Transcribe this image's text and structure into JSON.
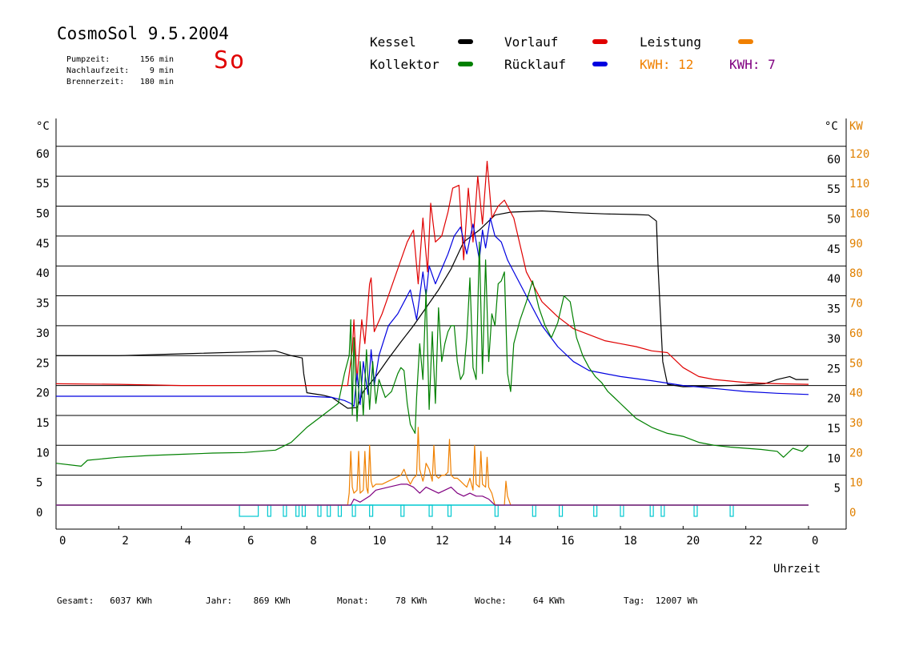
{
  "header": {
    "title": "CosmoSol 9.5.2004",
    "pump": {
      "label": "Pumpzeit:",
      "value": "156 min"
    },
    "run_on": {
      "label": "Nachlaufzeit:",
      "value": "9 min"
    },
    "burner": {
      "label": "Brennerzeit:",
      "value": "180 min"
    },
    "day": "So"
  },
  "legend": {
    "kessel": {
      "label": "Kessel",
      "color": "#000000"
    },
    "kollektor": {
      "label": "Kollektor",
      "color": "#008000"
    },
    "vorlauf": {
      "label": "Vorlauf",
      "color": "#e00000"
    },
    "ruecklauf": {
      "label": "Rücklauf",
      "color": "#0000e0"
    },
    "leistung": {
      "label": "Leistung",
      "color": "#f08000"
    },
    "kwh_orange": {
      "text": "KWH: 12",
      "color": "#f08000"
    },
    "kwh_purple": {
      "text": "KWH: 7",
      "color": "#800080"
    }
  },
  "footer": {
    "gesamt": {
      "label": "Gesamt:",
      "value": "6037 KWh"
    },
    "jahr": {
      "label": "Jahr:",
      "value": "869 KWh"
    },
    "monat": {
      "label": "Monat:",
      "value": "78 KWh"
    },
    "woche": {
      "label": "Woche:",
      "value": "64 KWh"
    },
    "tag": {
      "label": "Tag:",
      "value": "12007 Wh"
    }
  },
  "chart_data": {
    "type": "line",
    "ylabel_left": "°C",
    "ylabel_right": "°C",
    "ylabel_power": "KW",
    "xlabel": "Uhrzeit",
    "xlim": [
      0,
      24
    ],
    "ylim": [
      -3,
      63
    ],
    "power_lim": [
      0,
      120
    ],
    "x_ticks": [
      "0",
      "2",
      "4",
      "6",
      "8",
      "10",
      "12",
      "14",
      "16",
      "18",
      "20",
      "22",
      "0"
    ],
    "y_ticks": [
      0,
      5,
      10,
      15,
      20,
      25,
      30,
      35,
      40,
      45,
      50,
      55,
      60
    ],
    "y_ticks_right": [
      5,
      10,
      15,
      20,
      25,
      30,
      35,
      40,
      45,
      50,
      55,
      60
    ],
    "power_ticks": [
      0,
      10,
      20,
      30,
      40,
      50,
      60,
      70,
      80,
      90,
      100,
      110,
      120
    ],
    "grid": "horizontal",
    "series": [
      {
        "name": "Kessel",
        "color": "#000000",
        "x": [
          0,
          2,
          4,
          6,
          7.0,
          7.5,
          7.85,
          7.9,
          8.0,
          8.5,
          8.8,
          9.3,
          9.6,
          9.8,
          10.2,
          10.6,
          11.0,
          11.4,
          11.8,
          12.2,
          12.6,
          13.0,
          13.5,
          14.0,
          14.5,
          15.5,
          16.5,
          17.5,
          18.5,
          18.9,
          19.15,
          19.2,
          19.35,
          19.5,
          20.0,
          21.0,
          22.0,
          22.6,
          23.0,
          23.4,
          23.6,
          24
        ],
        "y": [
          25.0,
          25.0,
          25.3,
          25.6,
          25.8,
          25.0,
          24.6,
          22.0,
          18.8,
          18.4,
          18.0,
          16.2,
          16.3,
          19.0,
          21.5,
          24.5,
          27.3,
          30.0,
          33.0,
          36.0,
          39.5,
          44.0,
          46.0,
          48.5,
          49.0,
          49.2,
          48.9,
          48.7,
          48.6,
          48.5,
          47.5,
          40.0,
          24.0,
          20.2,
          19.8,
          19.9,
          20.1,
          20.3,
          21.0,
          21.5,
          21.0,
          21.0
        ]
      },
      {
        "name": "Vorlauf",
        "color": "#e00000",
        "x": [
          0,
          2,
          4,
          6,
          8,
          9.0,
          9.3,
          9.45,
          9.5,
          9.6,
          9.75,
          9.85,
          10.0,
          10.05,
          10.15,
          10.4,
          10.8,
          11.2,
          11.4,
          11.55,
          11.7,
          11.85,
          11.95,
          12.1,
          12.3,
          12.5,
          12.65,
          12.85,
          13.0,
          13.15,
          13.3,
          13.45,
          13.6,
          13.75,
          13.9,
          14.1,
          14.3,
          14.6,
          15.0,
          15.5,
          16.0,
          16.5,
          17.0,
          17.5,
          18.0,
          18.5,
          19.0,
          19.5,
          20.0,
          20.5,
          21.0,
          22.0,
          23.0,
          24
        ],
        "y": [
          20.3,
          20.2,
          20.0,
          20.0,
          20.0,
          20.0,
          20.0,
          26.0,
          31.0,
          21.0,
          31.0,
          27.0,
          37.0,
          38.0,
          29.0,
          32.0,
          38.0,
          44.0,
          46.0,
          37.0,
          48.0,
          39.0,
          50.5,
          44.0,
          45.0,
          49.0,
          53.0,
          53.5,
          41.0,
          53.0,
          44.0,
          55.0,
          47.0,
          57.5,
          48.0,
          50.0,
          51.0,
          48.0,
          39.0,
          34.0,
          31.5,
          29.5,
          28.5,
          27.5,
          27.0,
          26.5,
          25.8,
          25.5,
          23.0,
          21.5,
          21.0,
          20.5,
          20.3,
          20.2
        ]
      },
      {
        "name": "Rücklauf",
        "color": "#0000e0",
        "x": [
          0,
          2,
          4,
          6,
          8,
          8.8,
          9.2,
          9.4,
          9.5,
          9.6,
          9.7,
          9.8,
          9.95,
          10.05,
          10.15,
          10.3,
          10.6,
          10.9,
          11.3,
          11.5,
          11.7,
          11.8,
          11.9,
          12.1,
          12.3,
          12.5,
          12.7,
          12.9,
          13.1,
          13.3,
          13.5,
          13.6,
          13.7,
          13.85,
          14.0,
          14.2,
          14.4,
          14.7,
          15.0,
          15.5,
          16.0,
          16.5,
          17.0,
          18.0,
          19.0,
          20.0,
          21.0,
          22.0,
          23.0,
          24
        ],
        "y": [
          18.2,
          18.2,
          18.2,
          18.2,
          18.2,
          18.0,
          17.5,
          17.0,
          16.5,
          22.0,
          16.8,
          24.0,
          18.5,
          26.0,
          20.0,
          25.0,
          30.0,
          32.0,
          36.0,
          31.0,
          39.0,
          35.0,
          40.0,
          37.0,
          39.5,
          42.0,
          45.0,
          46.5,
          42.0,
          47.0,
          41.0,
          46.0,
          43.0,
          48.0,
          45.0,
          44.0,
          41.0,
          38.0,
          35.0,
          30.0,
          26.5,
          24.0,
          22.5,
          21.5,
          20.8,
          20.0,
          19.5,
          19.0,
          18.7,
          18.5
        ]
      },
      {
        "name": "Kollektor",
        "color": "#008000",
        "x": [
          0,
          0.8,
          1,
          2,
          3,
          4,
          5,
          6,
          6.5,
          7.0,
          7.5,
          8.0,
          8.5,
          9.0,
          9.2,
          9.35,
          9.4,
          9.45,
          9.5,
          9.6,
          9.7,
          9.8,
          9.9,
          10.0,
          10.1,
          10.2,
          10.3,
          10.5,
          10.7,
          10.9,
          11.0,
          11.1,
          11.2,
          11.3,
          11.45,
          11.5,
          11.6,
          11.7,
          11.8,
          11.9,
          12.0,
          12.1,
          12.2,
          12.3,
          12.4,
          12.5,
          12.6,
          12.7,
          12.8,
          12.9,
          13.0,
          13.1,
          13.2,
          13.3,
          13.4,
          13.5,
          13.6,
          13.7,
          13.8,
          13.9,
          14.0,
          14.1,
          14.2,
          14.3,
          14.4,
          14.5,
          14.6,
          14.8,
          15.0,
          15.2,
          15.4,
          15.6,
          15.8,
          16.0,
          16.2,
          16.4,
          16.6,
          16.8,
          17.0,
          17.2,
          17.4,
          17.6,
          17.8,
          18.0,
          18.5,
          19.0,
          19.5,
          20.0,
          20.5,
          21.0,
          21.5,
          22.0,
          22.5,
          23.0,
          23.2,
          23.5,
          23.8,
          24
        ],
        "y": [
          7.0,
          6.5,
          7.5,
          8.0,
          8.3,
          8.5,
          8.7,
          8.8,
          9.0,
          9.2,
          10.5,
          13.0,
          15.0,
          17.0,
          22.0,
          25.0,
          31.0,
          15.0,
          28.0,
          14.0,
          24.0,
          15.0,
          26.0,
          16.0,
          24.0,
          17.0,
          21.0,
          18.0,
          19.0,
          22.0,
          23.0,
          22.5,
          17.0,
          13.5,
          12.0,
          18.0,
          27.0,
          21.0,
          36.0,
          16.0,
          29.0,
          17.0,
          33.0,
          24.0,
          27.0,
          29.0,
          30.0,
          30.0,
          24.0,
          21.0,
          22.0,
          28.0,
          38.0,
          23.0,
          21.0,
          44.0,
          22.0,
          41.0,
          24.0,
          32.0,
          30.0,
          37.0,
          37.5,
          39.0,
          22.0,
          19.0,
          27.0,
          31.0,
          34.0,
          37.5,
          33.0,
          30.0,
          28.0,
          30.5,
          35.0,
          34.0,
          28.0,
          25.0,
          23.0,
          21.5,
          20.5,
          19.0,
          18.0,
          17.0,
          14.5,
          13.0,
          12.0,
          11.5,
          10.5,
          10.0,
          9.7,
          9.5,
          9.3,
          9.0,
          8.0,
          9.5,
          9.0,
          10.0
        ]
      },
      {
        "name": "Leistung",
        "color": "#f08000",
        "axis": "power",
        "x": [
          0,
          9.3,
          9.35,
          9.4,
          9.45,
          9.5,
          9.6,
          9.65,
          9.7,
          9.8,
          9.85,
          9.9,
          9.95,
          10.0,
          10.05,
          10.1,
          10.2,
          10.4,
          10.6,
          10.8,
          11.0,
          11.1,
          11.2,
          11.3,
          11.4,
          11.5,
          11.55,
          11.6,
          11.7,
          11.75,
          11.8,
          11.9,
          12.0,
          12.05,
          12.1,
          12.2,
          12.3,
          12.4,
          12.5,
          12.55,
          12.6,
          12.7,
          12.8,
          12.9,
          13.0,
          13.1,
          13.2,
          13.3,
          13.35,
          13.4,
          13.5,
          13.55,
          13.6,
          13.7,
          13.75,
          13.8,
          13.9,
          14.0,
          14.3,
          14.35,
          14.4,
          14.5,
          24
        ],
        "y": [
          0,
          0,
          4,
          18,
          6,
          4,
          5,
          18,
          4,
          5,
          18,
          6,
          4,
          20,
          8,
          6,
          7,
          7,
          8,
          9,
          10,
          12,
          9,
          7,
          9,
          10,
          26,
          12,
          8,
          10,
          14,
          12,
          8,
          20,
          10,
          9,
          10,
          10,
          11,
          22,
          10,
          9,
          9,
          8,
          7,
          6,
          9,
          5,
          20,
          7,
          6,
          18,
          7,
          6,
          16,
          6,
          4,
          0,
          0,
          8,
          3,
          0,
          0
        ]
      },
      {
        "name": "Leistung2",
        "color": "#800080",
        "axis": "power",
        "x": [
          0,
          9.4,
          9.5,
          9.7,
          10.0,
          10.2,
          10.6,
          11.0,
          11.2,
          11.4,
          11.6,
          11.8,
          12.0,
          12.2,
          12.4,
          12.6,
          12.8,
          13.0,
          13.2,
          13.4,
          13.6,
          13.8,
          13.9,
          14.0,
          24
        ],
        "y": [
          0,
          0,
          2,
          1,
          3,
          5,
          6,
          7,
          7,
          6,
          4,
          6,
          5,
          4,
          5,
          6,
          4,
          3,
          4,
          3,
          3,
          2,
          1,
          0,
          0
        ]
      }
    ],
    "pump_state": {
      "name": "Pumpe",
      "color": "#00c8d0",
      "on_intervals": [
        [
          5.85,
          6.45
        ],
        [
          6.75,
          6.85
        ],
        [
          7.25,
          7.35
        ],
        [
          7.65,
          7.75
        ],
        [
          7.85,
          7.95
        ],
        [
          8.35,
          8.45
        ],
        [
          8.65,
          8.75
        ],
        [
          9.0,
          9.1
        ],
        [
          9.45,
          9.55
        ],
        [
          10.0,
          10.1
        ],
        [
          11.0,
          11.1
        ],
        [
          11.9,
          12.0
        ],
        [
          12.5,
          12.6
        ],
        [
          14.0,
          14.1
        ],
        [
          15.2,
          15.3
        ],
        [
          16.05,
          16.15
        ],
        [
          17.15,
          17.25
        ],
        [
          18.0,
          18.1
        ],
        [
          18.95,
          19.05
        ],
        [
          19.3,
          19.4
        ],
        [
          20.35,
          20.45
        ],
        [
          21.5,
          21.6
        ]
      ]
    }
  }
}
